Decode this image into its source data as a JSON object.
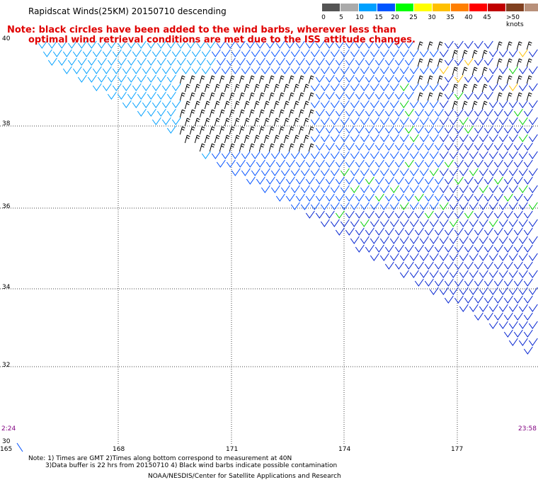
{
  "header": {
    "title": "Rapidscat Winds(25KM) 20150710 descending"
  },
  "notice": {
    "line1": "Note: black circles have been added to the wind barbs, wherever less than",
    "line2": "optimal wind retrieval conditions are met due to the ISS attitude changes."
  },
  "legend": {
    "unit": "knots",
    "colors": [
      "#555555",
      "#aaaaaa",
      "#00a0ff",
      "#0055ff",
      "#00ff00",
      "#ffff00",
      "#ffc000",
      "#ff7f00",
      "#ff0000",
      "#c00000",
      "#804020",
      "#b8907a",
      "#ff00ff",
      "#8000c0",
      "#400080"
    ],
    "labels": [
      "0",
      "5",
      "10",
      "15",
      "20",
      "25",
      "30",
      "35",
      "40",
      "45",
      ">50 knots"
    ]
  },
  "map": {
    "lat_labels": [
      "40",
      "38",
      "36",
      "34",
      "32",
      "30"
    ],
    "lon_labels": [
      "165",
      "168",
      "171",
      "174",
      "177"
    ],
    "time_left": "2:24",
    "time_right": "23:58"
  },
  "footer": {
    "line1": "Note: 1) Times are GMT 2)Times along bottom correspond to measurement at 40N",
    "line2": "3)Data buffer is 22 hrs from 20150710 4) Black wind barbs indicate possible contamination",
    "line3": "NOAA/NESDIS/Center for Satellite Applications and Research"
  }
}
